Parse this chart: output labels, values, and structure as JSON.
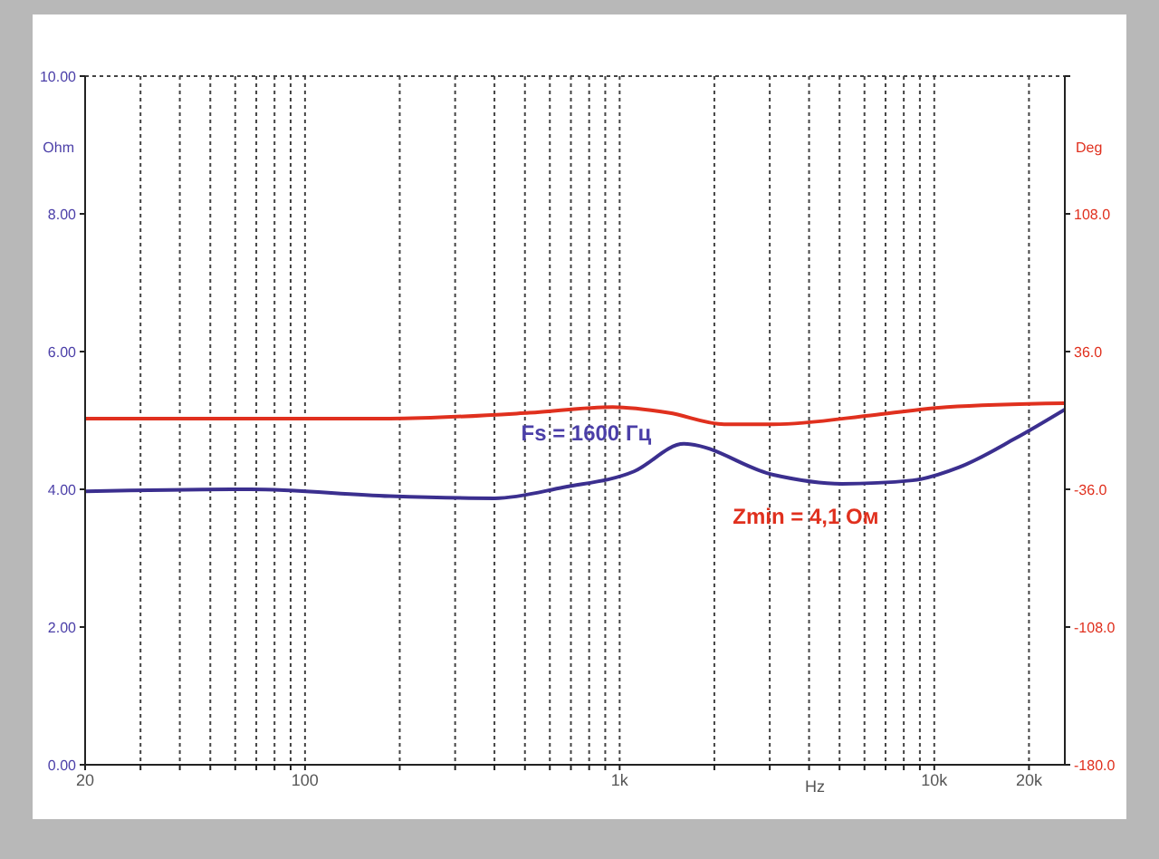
{
  "chart_data": {
    "type": "line",
    "xlabel": "Hz",
    "ylabel": "Ohm",
    "y2label": "Deg",
    "log": "x",
    "grid": true,
    "legend": false,
    "marker": "none",
    "line_style": "solid",
    "xlim": [
      20,
      26000
    ],
    "xticks": [
      20,
      {
        "value": 30,
        "label": null
      },
      {
        "value": 40,
        "label": null
      },
      {
        "value": 50,
        "label": null
      },
      {
        "value": 60,
        "label": null
      },
      {
        "value": 70,
        "label": null
      },
      {
        "value": 80,
        "label": null
      },
      {
        "value": 90,
        "label": null
      },
      100,
      {
        "value": 200,
        "label": null
      },
      {
        "value": 300,
        "label": null
      },
      {
        "value": 400,
        "label": null
      },
      {
        "value": 500,
        "label": null
      },
      {
        "value": 600,
        "label": null
      },
      {
        "value": 700,
        "label": null
      },
      {
        "value": 800,
        "label": null
      },
      {
        "value": 900,
        "label": null
      },
      {
        "value": 1000,
        "label": "1k"
      },
      {
        "value": 2000,
        "label": null
      },
      {
        "value": 3000,
        "label": null
      },
      {
        "value": 4000,
        "label": null
      },
      {
        "value": 5000,
        "label": null
      },
      {
        "value": 6000,
        "label": null
      },
      {
        "value": 7000,
        "label": null
      },
      {
        "value": 8000,
        "label": null
      },
      {
        "value": 9000,
        "label": null
      },
      {
        "value": 10000,
        "label": "10k"
      },
      {
        "value": 20000,
        "label": "20k"
      }
    ],
    "ylim": [
      0,
      10
    ],
    "yticks": [
      {
        "value": 0,
        "label": "0.00"
      },
      {
        "value": 2,
        "label": "2.00"
      },
      {
        "value": 4,
        "label": "4.00"
      },
      {
        "value": 6,
        "label": "6.00"
      },
      {
        "value": 8,
        "label": "8.00"
      },
      {
        "value": 10,
        "label": "10.00"
      }
    ],
    "y2lim": [
      -180,
      180
    ],
    "y2ticks": [
      {
        "value": -180,
        "label": "-180.0"
      },
      {
        "value": -108,
        "label": "-108.0"
      },
      {
        "value": -36,
        "label": "-36.0"
      },
      {
        "value": 36,
        "label": "36.0"
      },
      {
        "value": 108,
        "label": "108.0"
      },
      {
        "value": 180,
        "label": null
      }
    ],
    "series": [
      {
        "color": "#3b2f8f",
        "x": [
          20,
          67,
          186,
          401,
          664,
          1111,
          1600,
          3080,
          5090,
          8530,
          12000,
          18100,
          26000
        ],
        "values": [
          3.97,
          4.0,
          3.9,
          3.87,
          4.03,
          4.26,
          4.66,
          4.21,
          4.08,
          4.13,
          4.32,
          4.74,
          5.16
        ]
      },
      {
        "color": "#e0301e",
        "axis": "y2",
        "x": [
          20,
          186,
          516,
          950,
          1430,
          2150,
          3080,
          6540,
          10970,
          26000
        ],
        "values": [
          1,
          1,
          4,
          7,
          4,
          -2,
          -2,
          3,
          7,
          9
        ]
      }
    ],
    "annotations": [
      {
        "text": "Fs = 1600 Гц",
        "x": 1600,
        "y": 4.66
      },
      {
        "text": "Zmin = 4,1 Ом",
        "x": 5090,
        "y": 4.08
      }
    ]
  }
}
